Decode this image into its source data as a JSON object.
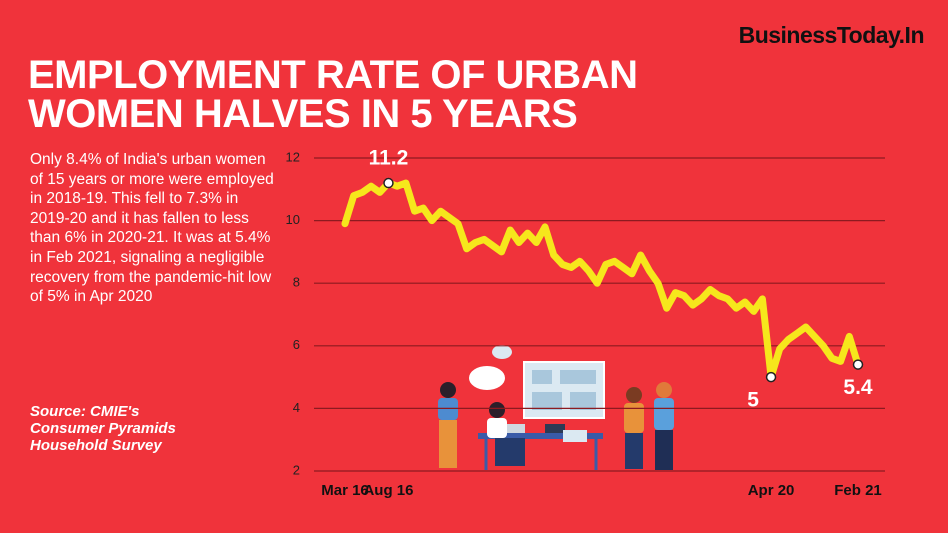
{
  "brand": "BusinessToday.In",
  "description": "Only 8.4% of India's urban women of 15 years or more were employed in 2018-19. This fell to 7.3% in 2019-20 and it has fallen to less than 6% in 2020-21. It was at 5.4% in Feb 2021, signaling a negligible recovery from the pandemic-hit low of 5% in Apr 2020",
  "source": "Source: CMIE's Consumer Pyramids Household Survey",
  "chart_data": {
    "type": "line",
    "title": "EMPLOYMENT RATE OF URBAN WOMEN HALVES IN 5 YEARS",
    "color": "#f6e71c",
    "categories": [
      "Mar 16",
      null,
      null,
      null,
      null,
      "Aug 16",
      null,
      null,
      null,
      null,
      null,
      null,
      null,
      null,
      null,
      null,
      null,
      null,
      null,
      null,
      null,
      null,
      null,
      null,
      null,
      null,
      null,
      null,
      null,
      null,
      null,
      null,
      null,
      null,
      null,
      null,
      null,
      null,
      null,
      null,
      null,
      null,
      null,
      null,
      null,
      null,
      null,
      null,
      null,
      "Apr 20",
      null,
      null,
      null,
      null,
      null,
      null,
      null,
      null,
      null,
      "Feb 21"
    ],
    "values": [
      9.9,
      10.8,
      10.9,
      11.1,
      10.9,
      11.2,
      11.1,
      11.2,
      10.3,
      10.4,
      10.0,
      10.3,
      10.1,
      9.9,
      9.1,
      9.3,
      9.4,
      9.2,
      9.0,
      9.7,
      9.3,
      9.6,
      9.3,
      9.8,
      8.9,
      8.6,
      8.5,
      8.7,
      8.4,
      8.0,
      8.6,
      8.7,
      8.5,
      8.3,
      8.9,
      8.4,
      8.0,
      7.2,
      7.7,
      7.6,
      7.3,
      7.5,
      7.8,
      7.6,
      7.5,
      7.2,
      7.4,
      7.1,
      7.5,
      5.0,
      5.9,
      6.2,
      6.4,
      6.6,
      6.3,
      6.0,
      5.6,
      5.5,
      6.3,
      5.4
    ],
    "value_labels": [
      null,
      null,
      null,
      null,
      null,
      "11.2",
      null,
      null,
      null,
      null,
      null,
      null,
      null,
      null,
      null,
      null,
      null,
      null,
      null,
      null,
      null,
      null,
      null,
      null,
      null,
      null,
      null,
      null,
      null,
      null,
      null,
      null,
      null,
      null,
      null,
      null,
      null,
      null,
      null,
      null,
      null,
      null,
      null,
      null,
      null,
      null,
      null,
      null,
      null,
      "5",
      null,
      null,
      null,
      null,
      null,
      null,
      null,
      null,
      null,
      "5.4"
    ],
    "ylim": [
      2,
      12
    ],
    "yticks": [
      2,
      4,
      6,
      8,
      10,
      12
    ],
    "grid": true
  }
}
